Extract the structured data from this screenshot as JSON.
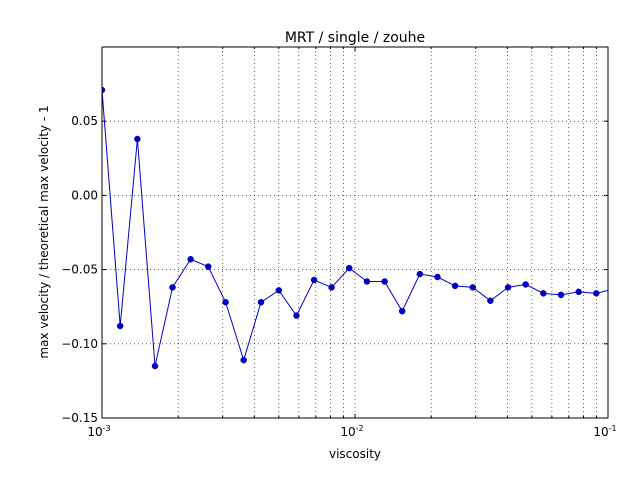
{
  "chart_data": {
    "type": "line",
    "title": "MRT / single / zouhe",
    "xlabel": "viscosity",
    "ylabel": "max velocity / theoretical max velocity - 1",
    "xscale": "log",
    "xlim": [
      0.001,
      0.1
    ],
    "ylim": [
      -0.15,
      0.1
    ],
    "grid": true,
    "color": "#0000cc",
    "x_ticks": [
      {
        "value": 0.001,
        "base": "10",
        "exp": "-3"
      },
      {
        "value": 0.01,
        "base": "10",
        "exp": "-2"
      },
      {
        "value": 0.1,
        "base": "10",
        "exp": "-1"
      }
    ],
    "y_ticks": [
      {
        "value": -0.15,
        "label": "−0.15"
      },
      {
        "value": -0.1,
        "label": "−0.10"
      },
      {
        "value": -0.05,
        "label": "−0.05"
      },
      {
        "value": 0.0,
        "label": "0.00"
      },
      {
        "value": 0.05,
        "label": "0.05"
      }
    ],
    "series": [
      {
        "x": [
          0.001,
          0.00118,
          0.00138,
          0.00162,
          0.0019,
          0.00224,
          0.00263,
          0.00308,
          0.00363,
          0.00425,
          0.005,
          0.00587,
          0.00689,
          0.00808,
          0.00949,
          0.01115,
          0.01309,
          0.01536,
          0.01804,
          0.02119,
          0.02487,
          0.02921,
          0.03429,
          0.04027,
          0.04728,
          0.05553,
          0.0652,
          0.07656,
          0.0899,
          0.10557
        ],
        "y": [
          0.071,
          -0.088,
          0.038,
          -0.115,
          -0.062,
          -0.043,
          -0.048,
          -0.072,
          -0.111,
          -0.072,
          -0.064,
          -0.081,
          -0.057,
          -0.062,
          -0.049,
          -0.058,
          -0.058,
          -0.078,
          -0.053,
          -0.055,
          -0.061,
          -0.062,
          -0.071,
          -0.062,
          -0.06,
          -0.066,
          -0.067,
          -0.065,
          -0.066,
          -0.063
        ]
      }
    ]
  }
}
